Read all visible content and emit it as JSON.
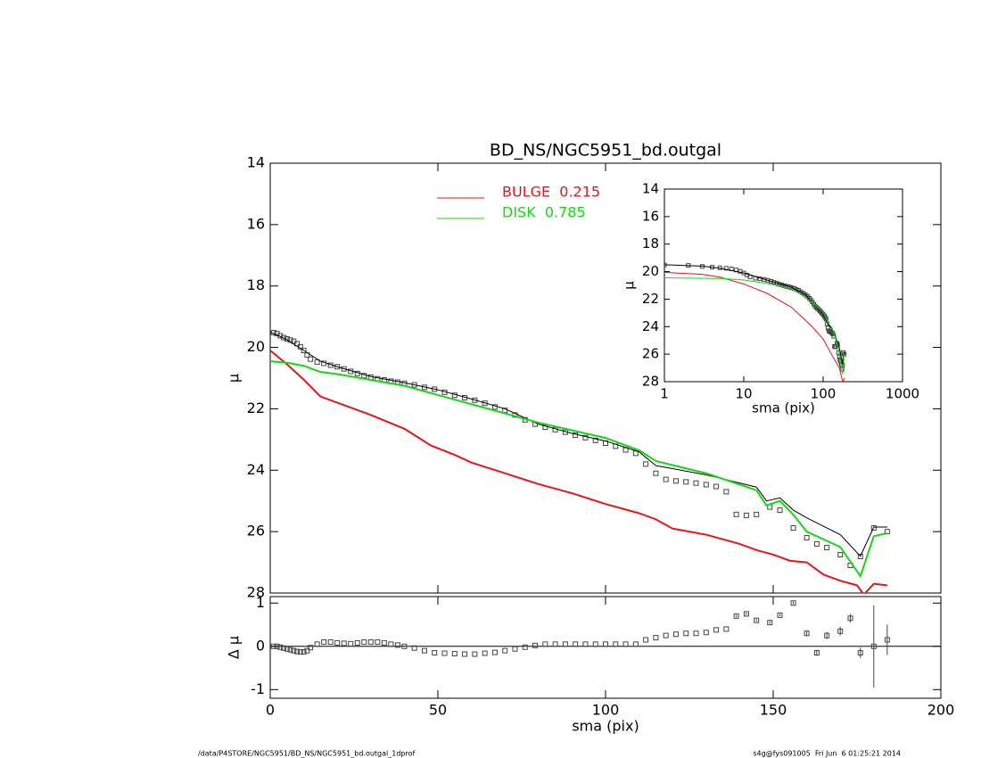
{
  "chart_data": [
    {
      "type": "line",
      "title": "BD_NS/NGC5951_bd.outgal",
      "ylabel": "μ",
      "xlim": [
        0,
        200
      ],
      "xticks": [
        0,
        50,
        100,
        150,
        200
      ],
      "show_xtick_labels": false,
      "ylim": [
        14,
        28
      ],
      "yticks": [
        14,
        16,
        18,
        20,
        22,
        24,
        26,
        28
      ],
      "y_inverted": true,
      "series": [
        {
          "marker": "square",
          "color": "#444444",
          "x": [
            1,
            2,
            3,
            4,
            5,
            6,
            7,
            8,
            9,
            10,
            11,
            12,
            14,
            16,
            18,
            20,
            22,
            24,
            26,
            28,
            30,
            32,
            34,
            36,
            38,
            40,
            43,
            46,
            49,
            52,
            55,
            58,
            61,
            64,
            67,
            70,
            73,
            76,
            79,
            82,
            85,
            88,
            91,
            94,
            97,
            100,
            103,
            106,
            109,
            112,
            115,
            118,
            121,
            124,
            127,
            130,
            133,
            136,
            139,
            142,
            145,
            149,
            152,
            156,
            160,
            163,
            166,
            170,
            173,
            176,
            180,
            184
          ],
          "values": [
            19.52,
            19.55,
            19.62,
            19.68,
            19.72,
            19.76,
            19.8,
            19.88,
            19.98,
            20.1,
            20.25,
            20.38,
            20.48,
            20.52,
            20.58,
            20.63,
            20.7,
            20.78,
            20.85,
            20.92,
            20.97,
            21.02,
            21.06,
            21.1,
            21.13,
            21.17,
            21.22,
            21.3,
            21.36,
            21.46,
            21.56,
            21.64,
            21.72,
            21.82,
            21.94,
            22.05,
            22.2,
            22.36,
            22.5,
            22.6,
            22.68,
            22.76,
            22.86,
            22.94,
            23.03,
            23.12,
            23.22,
            23.34,
            23.45,
            23.8,
            24.1,
            24.3,
            24.35,
            24.38,
            24.42,
            24.47,
            24.53,
            24.7,
            25.44,
            25.47,
            25.44,
            25.2,
            25.3,
            25.88,
            26.2,
            26.4,
            26.52,
            26.75,
            27.1,
            26.81,
            25.88,
            26.0
          ]
        },
        {
          "color": "#000000",
          "width": 1,
          "x": [
            0,
            5,
            10,
            15,
            20,
            30,
            40,
            50,
            60,
            70,
            80,
            90,
            100,
            110,
            115,
            130,
            145,
            148,
            152,
            156,
            160,
            170,
            176,
            180,
            184
          ],
          "values": [
            19.5,
            19.75,
            20.1,
            20.45,
            20.63,
            20.95,
            21.15,
            21.38,
            21.68,
            22.0,
            22.5,
            22.8,
            23.05,
            23.4,
            23.85,
            24.15,
            24.55,
            25.0,
            24.9,
            25.3,
            25.55,
            26.1,
            26.8,
            25.85,
            25.85
          ]
        },
        {
          "name": "BULGE  0.215",
          "color": "#e8141b",
          "width": 2,
          "x": [
            0,
            5,
            10,
            15,
            20,
            30,
            40,
            48,
            55,
            60,
            70,
            80,
            90,
            100,
            110,
            115,
            120,
            130,
            140,
            145,
            150,
            155,
            160,
            165,
            170,
            175,
            177,
            180,
            184
          ],
          "values": [
            20.1,
            20.55,
            21.05,
            21.6,
            21.8,
            22.2,
            22.65,
            23.2,
            23.5,
            23.75,
            24.1,
            24.45,
            24.75,
            25.1,
            25.4,
            25.6,
            25.9,
            26.1,
            26.4,
            26.6,
            26.75,
            26.95,
            27.0,
            27.4,
            27.6,
            27.75,
            28.05,
            27.7,
            27.75
          ]
        },
        {
          "name": "DISK  0.785",
          "color": "#17d617",
          "width": 2,
          "x": [
            0,
            5,
            10,
            15,
            20,
            40,
            60,
            80,
            100,
            110,
            115,
            130,
            145,
            148,
            152,
            156,
            160,
            170,
            176,
            180,
            184
          ],
          "values": [
            20.45,
            20.5,
            20.6,
            20.8,
            20.87,
            21.25,
            21.85,
            22.45,
            22.95,
            23.35,
            23.7,
            24.1,
            24.65,
            25.15,
            25.0,
            25.45,
            26.0,
            26.5,
            27.45,
            26.15,
            26.05
          ]
        }
      ]
    },
    {
      "type": "scatter",
      "xlabel": "sma (pix)",
      "ylabel": "Δ μ",
      "xlim": [
        0,
        200
      ],
      "xticks": [
        0,
        50,
        100,
        150,
        200
      ],
      "ylim": [
        -1.2,
        1.15
      ],
      "yticks": [
        -1,
        0,
        1
      ],
      "zero_line": true,
      "color": "#444444",
      "x": [
        1,
        2,
        3,
        4,
        5,
        6,
        7,
        8,
        9,
        10,
        11,
        12,
        14,
        16,
        18,
        20,
        22,
        24,
        26,
        28,
        30,
        32,
        34,
        36,
        38,
        40,
        43,
        46,
        49,
        52,
        55,
        58,
        61,
        64,
        67,
        70,
        73,
        76,
        79,
        82,
        85,
        88,
        91,
        94,
        97,
        100,
        103,
        106,
        109,
        112,
        115,
        118,
        121,
        124,
        127,
        130,
        133,
        136,
        139,
        142,
        145,
        149,
        152,
        156,
        160,
        163,
        166,
        170,
        173,
        176,
        180,
        184
      ],
      "values": [
        0,
        0,
        -0.02,
        -0.04,
        -0.06,
        -0.08,
        -0.1,
        -0.12,
        -0.13,
        -0.13,
        -0.1,
        -0.03,
        0.05,
        0.1,
        0.1,
        0.08,
        0.07,
        0.06,
        0.08,
        0.1,
        0.1,
        0.1,
        0.08,
        0.05,
        0.03,
        0,
        -0.04,
        -0.1,
        -0.15,
        -0.16,
        -0.17,
        -0.18,
        -0.18,
        -0.16,
        -0.14,
        -0.1,
        -0.06,
        -0.02,
        0.02,
        0.05,
        0.05,
        0.05,
        0.05,
        0.05,
        0.05,
        0.05,
        0.05,
        0.05,
        0.05,
        0.15,
        0.2,
        0.25,
        0.28,
        0.3,
        0.3,
        0.32,
        0.38,
        0.4,
        0.7,
        0.75,
        0.6,
        0.55,
        0.72,
        1.0,
        0.3,
        -0.15,
        0.25,
        0.35,
        0.65,
        -0.15,
        0,
        0.15
      ],
      "errors": [
        null,
        null,
        null,
        null,
        null,
        null,
        null,
        null,
        null,
        null,
        null,
        null,
        null,
        null,
        null,
        null,
        null,
        null,
        null,
        null,
        null,
        null,
        null,
        null,
        null,
        null,
        null,
        null,
        null,
        null,
        null,
        null,
        null,
        null,
        null,
        null,
        null,
        null,
        null,
        null,
        null,
        null,
        null,
        null,
        null,
        null,
        null,
        null,
        null,
        null,
        null,
        null,
        null,
        null,
        null,
        null,
        null,
        null,
        0.03,
        0.03,
        0.03,
        0.03,
        0.03,
        0.03,
        0.07,
        0.07,
        0.08,
        0.1,
        0.1,
        0.12,
        0.95,
        0.35
      ]
    },
    {
      "type": "line",
      "xlabel": "sma (pix)",
      "ylabel": "μ",
      "xlog": true,
      "xlim": [
        1,
        1000
      ],
      "xticks": [
        1,
        10,
        100,
        1000
      ],
      "ylim": [
        14,
        28
      ],
      "yticks": [
        14,
        16,
        18,
        20,
        22,
        24,
        26,
        28
      ],
      "y_inverted": true,
      "series": [
        {
          "marker": "square",
          "color": "#444444",
          "x": [
            1,
            2,
            3,
            4,
            5,
            6,
            7,
            8,
            9,
            10,
            11,
            12,
            14,
            16,
            18,
            20,
            22,
            24,
            26,
            28,
            30,
            32,
            34,
            36,
            38,
            40,
            43,
            46,
            49,
            52,
            55,
            58,
            61,
            64,
            67,
            70,
            73,
            76,
            79,
            82,
            85,
            88,
            91,
            94,
            97,
            100,
            103,
            106,
            109,
            112,
            115,
            118,
            121,
            124,
            127,
            130,
            133,
            136,
            139,
            142,
            145,
            149,
            152,
            156,
            160,
            163,
            166,
            170,
            173,
            176,
            180,
            184
          ],
          "values": [
            19.52,
            19.55,
            19.62,
            19.68,
            19.72,
            19.76,
            19.8,
            19.88,
            19.98,
            20.1,
            20.25,
            20.38,
            20.48,
            20.52,
            20.58,
            20.63,
            20.7,
            20.78,
            20.85,
            20.92,
            20.97,
            21.02,
            21.06,
            21.1,
            21.13,
            21.17,
            21.22,
            21.3,
            21.36,
            21.46,
            21.56,
            21.64,
            21.72,
            21.82,
            21.94,
            22.05,
            22.2,
            22.36,
            22.5,
            22.6,
            22.68,
            22.76,
            22.86,
            22.94,
            23.03,
            23.12,
            23.22,
            23.34,
            23.45,
            23.8,
            24.1,
            24.3,
            24.35,
            24.38,
            24.42,
            24.47,
            24.53,
            24.7,
            25.44,
            25.47,
            25.44,
            25.2,
            25.3,
            25.88,
            26.2,
            26.4,
            26.52,
            26.75,
            27.1,
            26.81,
            25.88,
            26.0
          ]
        },
        {
          "color": "#000000",
          "width": 1,
          "x": [
            1,
            3,
            5,
            10,
            20,
            40,
            60,
            80,
            100,
            115,
            130,
            148,
            160,
            176,
            184
          ],
          "values": [
            19.5,
            19.6,
            19.75,
            20.1,
            20.63,
            21.15,
            21.68,
            22.5,
            23.05,
            23.85,
            24.15,
            25.0,
            25.55,
            26.8,
            25.85
          ]
        },
        {
          "color": "#e8141b",
          "width": 1,
          "x": [
            1,
            3,
            5,
            10,
            20,
            40,
            70,
            100,
            130,
            160,
            177,
            184
          ],
          "values": [
            20.05,
            20.2,
            20.4,
            20.9,
            21.6,
            22.6,
            23.9,
            24.9,
            26.1,
            27.0,
            28.05,
            27.75
          ]
        },
        {
          "color": "#17d617",
          "width": 1,
          "x": [
            1,
            5,
            10,
            20,
            40,
            60,
            80,
            100,
            115,
            130,
            148,
            160,
            176,
            184
          ],
          "values": [
            20.45,
            20.5,
            20.6,
            20.87,
            21.25,
            21.85,
            22.45,
            22.95,
            23.7,
            24.1,
            25.15,
            26.0,
            27.45,
            26.05
          ]
        }
      ]
    }
  ],
  "footer_left": "/data/P4STORE/NGC5951/BD_NS/NGC5951_bd.outgal_1dprof",
  "footer_right": "s4g@fys091005  Fri Jun  6 01:25:21 2014"
}
